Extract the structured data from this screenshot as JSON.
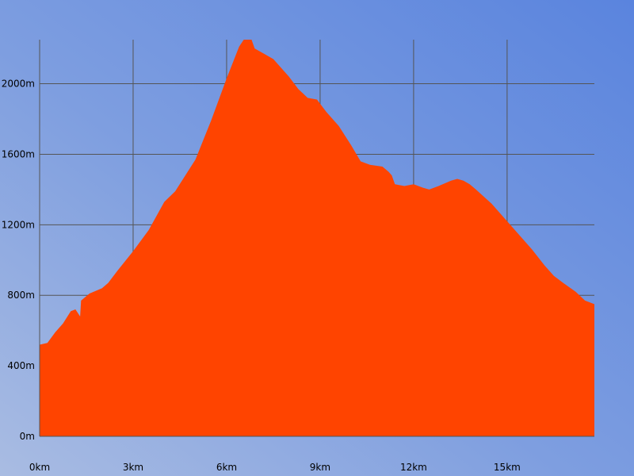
{
  "chart_data": {
    "type": "area",
    "title": "",
    "xlabel": "",
    "ylabel": "",
    "grid": true,
    "xlim": [
      0,
      17.8
    ],
    "ylim": [
      0,
      2250
    ],
    "x_ticks": [
      {
        "value": 0,
        "label": "0km"
      },
      {
        "value": 3,
        "label": "3km"
      },
      {
        "value": 6,
        "label": "6km"
      },
      {
        "value": 9,
        "label": "9km"
      },
      {
        "value": 12,
        "label": "12km"
      },
      {
        "value": 15,
        "label": "15km"
      }
    ],
    "y_ticks": [
      {
        "value": 0,
        "label": "0m"
      },
      {
        "value": 400,
        "label": "400m"
      },
      {
        "value": 800,
        "label": "800m"
      },
      {
        "value": 1200,
        "label": "1200m"
      },
      {
        "value": 1600,
        "label": "1600m"
      },
      {
        "value": 2000,
        "label": "2000m"
      }
    ],
    "series": [
      {
        "color": "#ff4400",
        "points": [
          [
            0.0,
            520
          ],
          [
            0.25,
            530
          ],
          [
            0.5,
            590
          ],
          [
            0.75,
            640
          ],
          [
            1.0,
            710
          ],
          [
            1.15,
            720
          ],
          [
            1.3,
            680
          ],
          [
            1.33,
            770
          ],
          [
            1.6,
            810
          ],
          [
            2.0,
            840
          ],
          [
            2.2,
            870
          ],
          [
            2.5,
            940
          ],
          [
            3.0,
            1050
          ],
          [
            3.5,
            1170
          ],
          [
            4.0,
            1330
          ],
          [
            4.35,
            1390
          ],
          [
            5.0,
            1570
          ],
          [
            5.5,
            1790
          ],
          [
            6.0,
            2030
          ],
          [
            6.4,
            2210
          ],
          [
            6.55,
            2250
          ],
          [
            6.8,
            2250
          ],
          [
            6.9,
            2200
          ],
          [
            7.2,
            2170
          ],
          [
            7.5,
            2140
          ],
          [
            8.0,
            2040
          ],
          [
            8.3,
            1970
          ],
          [
            8.6,
            1920
          ],
          [
            8.9,
            1910
          ],
          [
            9.2,
            1840
          ],
          [
            9.6,
            1760
          ],
          [
            10.0,
            1650
          ],
          [
            10.3,
            1560
          ],
          [
            10.6,
            1540
          ],
          [
            11.0,
            1530
          ],
          [
            11.2,
            1500
          ],
          [
            11.3,
            1480
          ],
          [
            11.4,
            1430
          ],
          [
            11.7,
            1420
          ],
          [
            12.0,
            1430
          ],
          [
            12.3,
            1410
          ],
          [
            12.5,
            1400
          ],
          [
            12.8,
            1420
          ],
          [
            13.2,
            1450
          ],
          [
            13.4,
            1460
          ],
          [
            13.6,
            1450
          ],
          [
            13.8,
            1430
          ],
          [
            14.0,
            1400
          ],
          [
            14.5,
            1320
          ],
          [
            15.0,
            1220
          ],
          [
            15.5,
            1120
          ],
          [
            15.8,
            1060
          ],
          [
            16.2,
            970
          ],
          [
            16.5,
            910
          ],
          [
            16.8,
            870
          ],
          [
            17.2,
            820
          ],
          [
            17.5,
            770
          ],
          [
            17.8,
            750
          ]
        ]
      }
    ]
  }
}
